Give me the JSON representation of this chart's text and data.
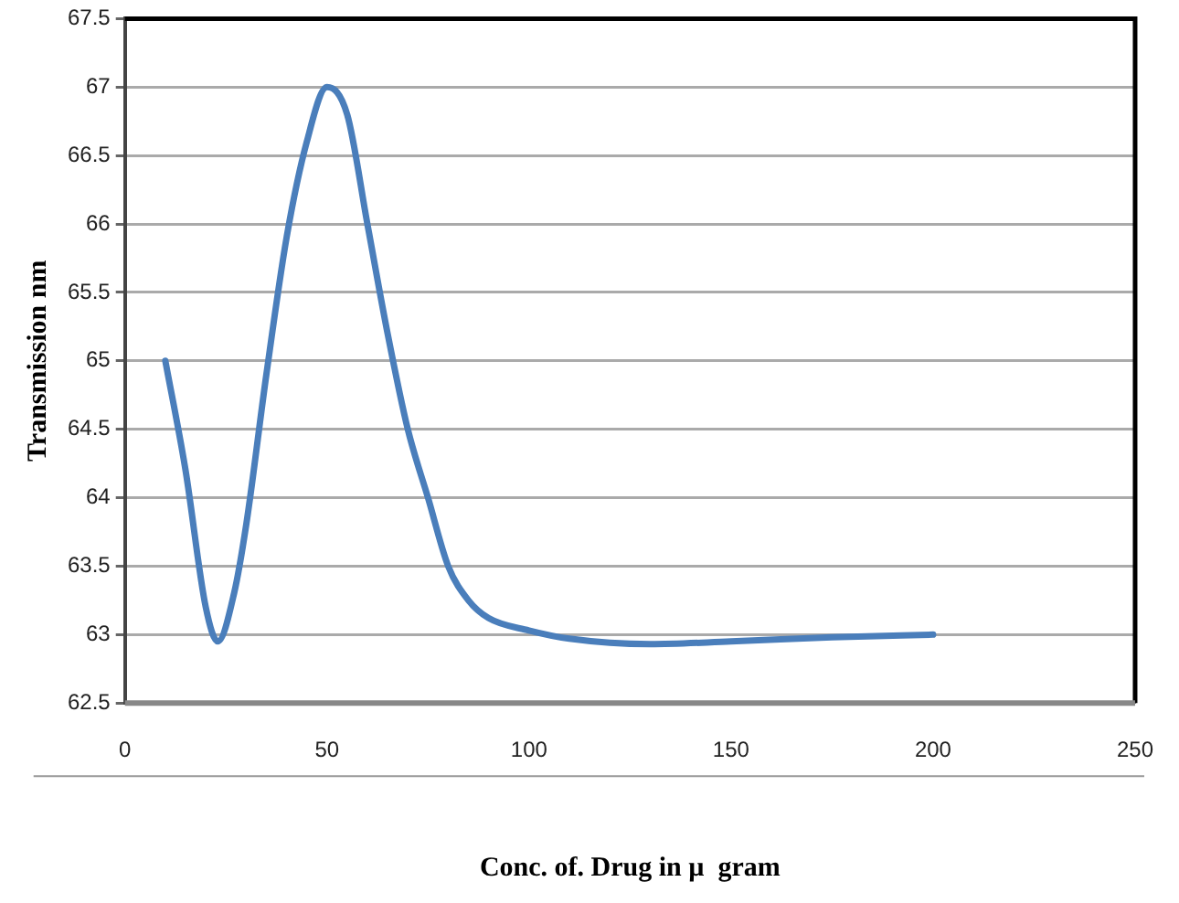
{
  "chart_data": {
    "type": "line",
    "xlabel": "Conc. of. Drug in µ  gram",
    "ylabel": "Transmission nm",
    "series": [
      {
        "color": "#4a7ebb",
        "x": [
          10,
          15,
          20,
          23,
          27,
          30,
          35,
          40,
          45,
          50,
          55,
          60,
          65,
          70,
          75,
          80,
          85,
          90,
          100,
          110,
          130,
          150,
          175,
          200
        ],
        "values": [
          65.0,
          64.2,
          63.2,
          62.95,
          63.3,
          63.8,
          64.9,
          65.9,
          66.6,
          67.0,
          66.8,
          66.0,
          65.2,
          64.5,
          64.0,
          63.5,
          63.25,
          63.12,
          63.03,
          62.97,
          62.93,
          62.95,
          62.98,
          63.0
        ]
      }
    ],
    "xlim": [
      0,
      250
    ],
    "xticks": [
      0,
      50,
      100,
      150,
      200,
      250
    ],
    "ylim": [
      62.5,
      67.5
    ],
    "yticks": [
      62.5,
      63,
      63.5,
      64,
      64.5,
      65,
      65.5,
      66,
      66.5,
      67,
      67.5
    ],
    "grid": "y",
    "legend": false,
    "marker": "none",
    "line_style": "solid"
  }
}
